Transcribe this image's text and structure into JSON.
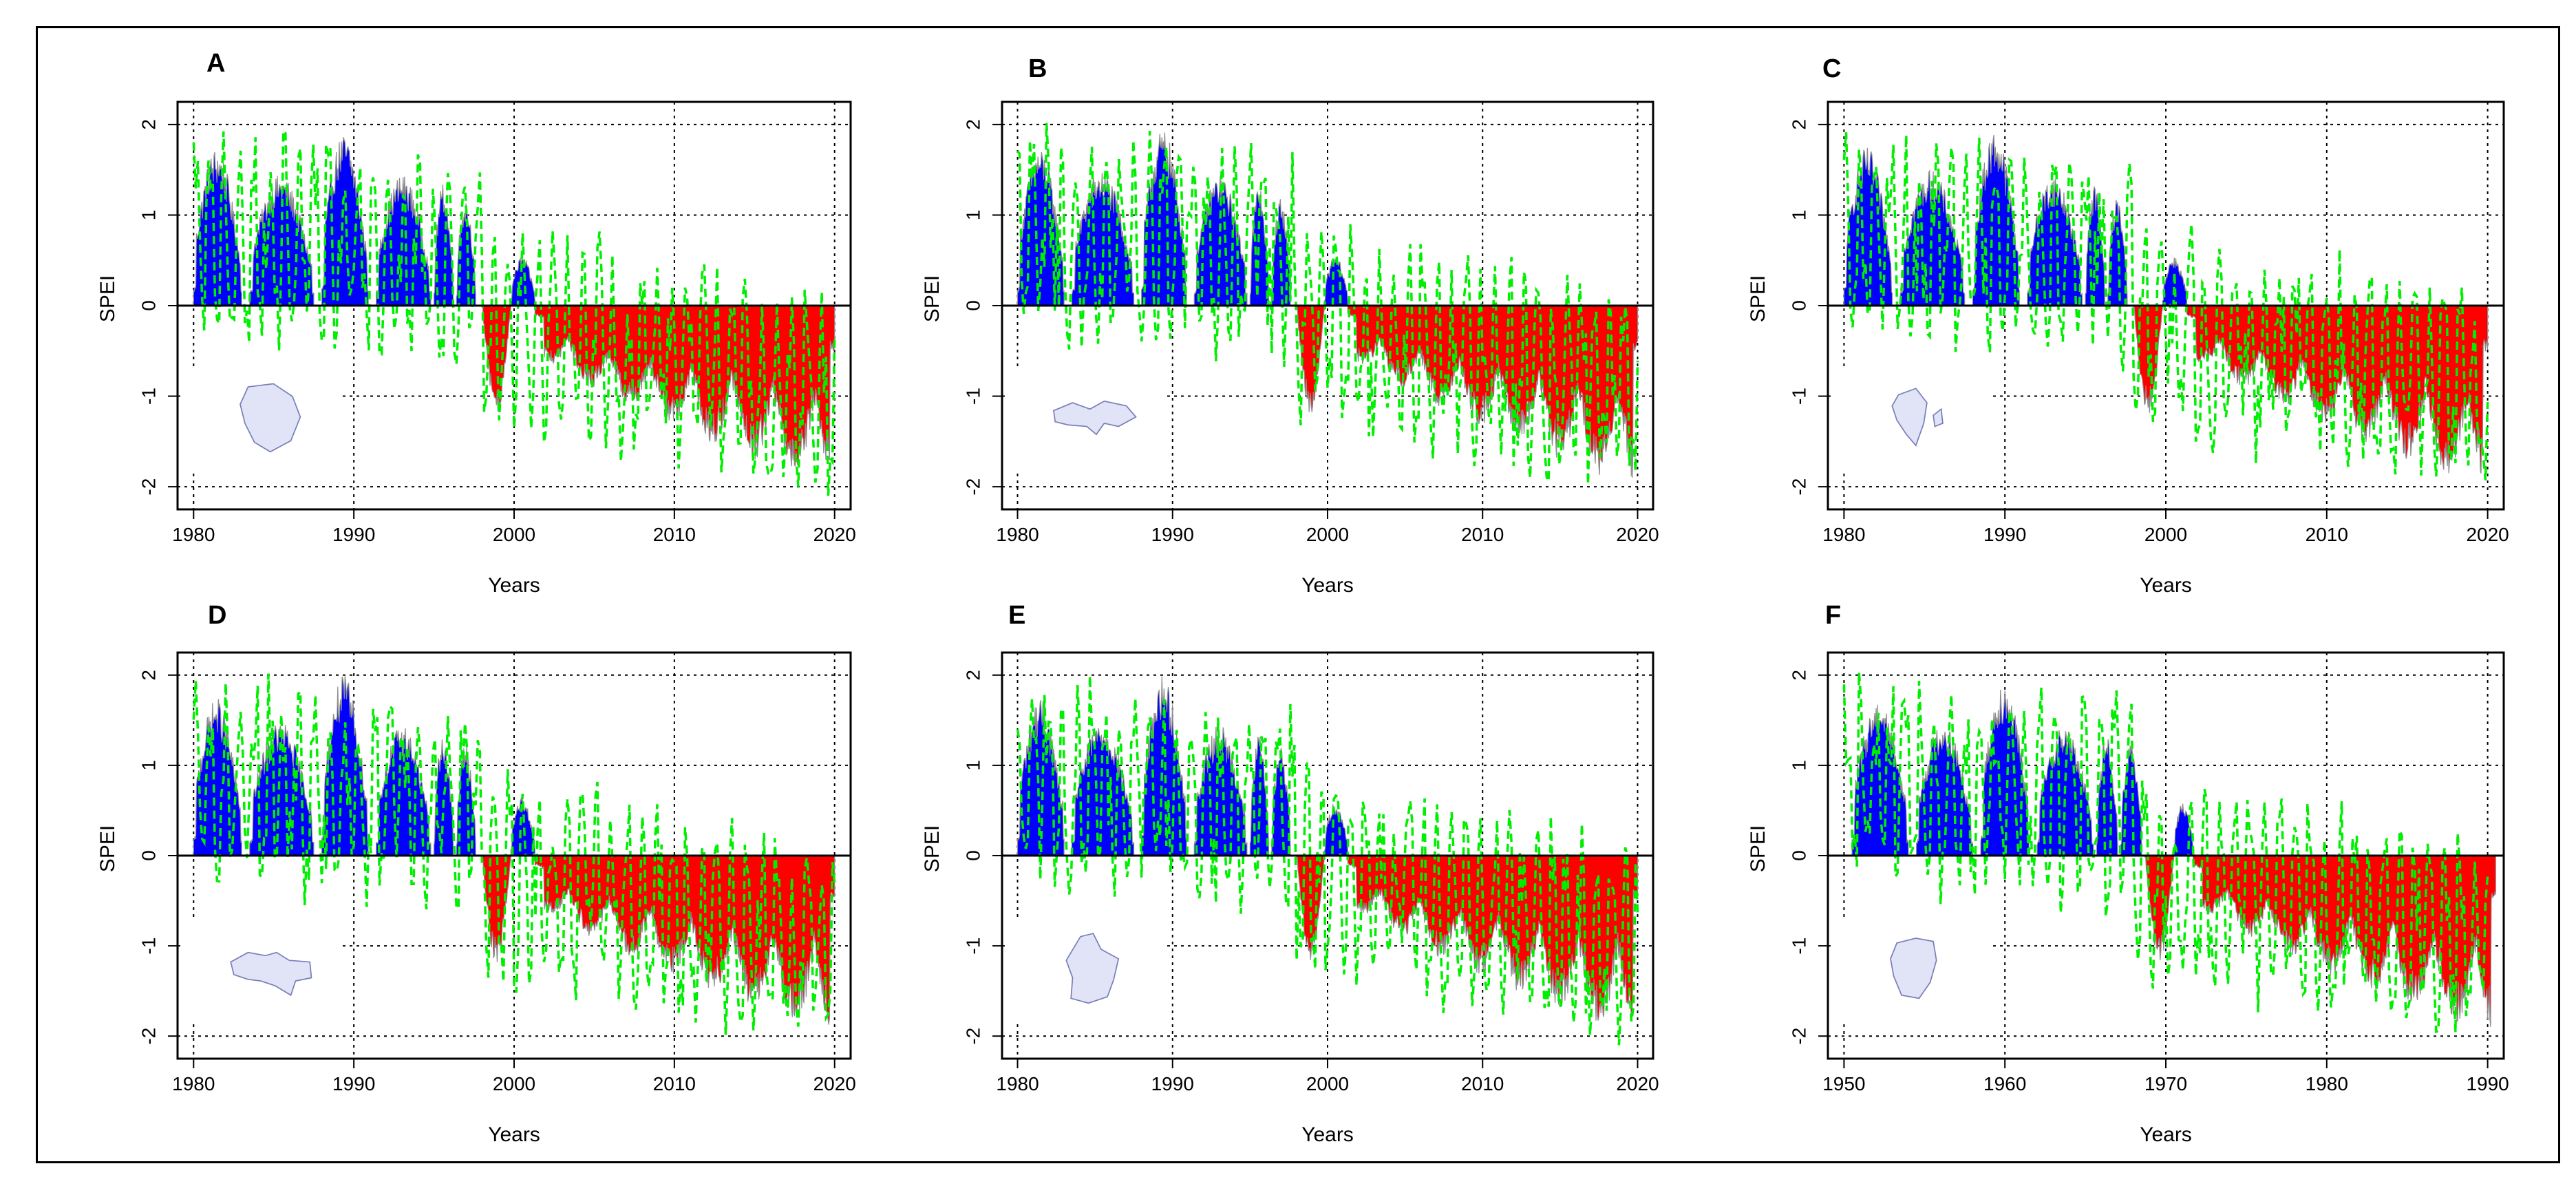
{
  "colors": {
    "positive": "#0000ff",
    "negative": "#ff0000",
    "modeled": "#00ee00",
    "observed_edge": "#8c8c8c",
    "grid": "#000000",
    "map_fill": "#e1e4f7",
    "map_stroke": "#7a7fb8"
  },
  "chart_data": [
    {
      "type": "area",
      "label": "A",
      "xlabel": "Years",
      "ylabel": "SPEI",
      "xlim": [
        1979,
        2021
      ],
      "ylim": [
        -2.25,
        2.25
      ],
      "xticks": [
        1980,
        1990,
        2000,
        2010,
        2020
      ],
      "yticks": [
        -2,
        -1,
        0,
        1,
        2
      ],
      "grid": true,
      "region_map": "region-map-a",
      "observed_segments": [
        {
          "x0": 1980,
          "x1": 1983.0,
          "peak": 1.75
        },
        {
          "x0": 1983.5,
          "x1": 1987.5,
          "peak": 1.45
        },
        {
          "x0": 1988.0,
          "x1": 1990.9,
          "peak": 1.9
        },
        {
          "x0": 1991.4,
          "x1": 1994.8,
          "peak": 1.45
        },
        {
          "x0": 1995.0,
          "x1": 1996.2,
          "peak": 1.35
        },
        {
          "x0": 1996.4,
          "x1": 1997.6,
          "peak": 1.2
        },
        {
          "x0": 1998.0,
          "x1": 1999.8,
          "peak": -1.2
        },
        {
          "x0": 1999.8,
          "x1": 2001.3,
          "peak": 0.55
        },
        {
          "x0": 2001.3,
          "x1": 2020.0,
          "peak": -2.05
        }
      ],
      "modeled_series": "green dashed line fluctuating between -2.1 and 2.0"
    },
    {
      "type": "area",
      "label": "B",
      "xlabel": "Years",
      "ylabel": "SPEI",
      "xlim": [
        1979,
        2021
      ],
      "ylim": [
        -2.25,
        2.25
      ],
      "xticks": [
        1980,
        1990,
        2000,
        2010,
        2020
      ],
      "yticks": [
        -2,
        -1,
        0,
        1,
        2
      ],
      "grid": true,
      "region_map": "region-map-b",
      "observed_segments": [
        {
          "x0": 1980,
          "x1": 1983.0,
          "peak": 1.75
        },
        {
          "x0": 1983.5,
          "x1": 1987.5,
          "peak": 1.5
        },
        {
          "x0": 1988.0,
          "x1": 1990.9,
          "peak": 1.95
        },
        {
          "x0": 1991.4,
          "x1": 1994.8,
          "peak": 1.45
        },
        {
          "x0": 1995.0,
          "x1": 1996.2,
          "peak": 1.35
        },
        {
          "x0": 1996.4,
          "x1": 1997.6,
          "peak": 1.2
        },
        {
          "x0": 1998.0,
          "x1": 1999.8,
          "peak": -1.2
        },
        {
          "x0": 1999.8,
          "x1": 2001.3,
          "peak": 0.55
        },
        {
          "x0": 2001.3,
          "x1": 2020.0,
          "peak": -2.05
        }
      ],
      "modeled_series": "green dashed line fluctuating between -2.1 and 2.0"
    },
    {
      "type": "area",
      "label": "C",
      "xlabel": "Years",
      "ylabel": "SPEI",
      "xlim": [
        1979,
        2021
      ],
      "ylim": [
        -2.25,
        2.25
      ],
      "xticks": [
        1980,
        1990,
        2000,
        2010,
        2020
      ],
      "yticks": [
        -2,
        -1,
        0,
        1,
        2
      ],
      "grid": true,
      "region_map": "region-map-c",
      "observed_segments": [
        {
          "x0": 1980,
          "x1": 1983.0,
          "peak": 1.75
        },
        {
          "x0": 1983.5,
          "x1": 1987.5,
          "peak": 1.5
        },
        {
          "x0": 1988.0,
          "x1": 1990.9,
          "peak": 1.95
        },
        {
          "x0": 1991.4,
          "x1": 1994.8,
          "peak": 1.45
        },
        {
          "x0": 1995.0,
          "x1": 1996.2,
          "peak": 1.35
        },
        {
          "x0": 1996.4,
          "x1": 1997.6,
          "peak": 1.2
        },
        {
          "x0": 1998.0,
          "x1": 1999.8,
          "peak": -1.2
        },
        {
          "x0": 1999.8,
          "x1": 2001.3,
          "peak": 0.55
        },
        {
          "x0": 2001.3,
          "x1": 2020.0,
          "peak": -2.05
        }
      ],
      "modeled_series": "green dashed line fluctuating between -2.1 and 2.0"
    },
    {
      "type": "area",
      "label": "D",
      "xlabel": "Years",
      "ylabel": "SPEI",
      "xlim": [
        1979,
        2021
      ],
      "ylim": [
        -2.25,
        2.25
      ],
      "xticks": [
        1980,
        1990,
        2000,
        2010,
        2020
      ],
      "yticks": [
        -2,
        -1,
        0,
        1,
        2
      ],
      "grid": true,
      "region_map": "region-map-d",
      "observed_segments": [
        {
          "x0": 1980,
          "x1": 1983.0,
          "peak": 1.75
        },
        {
          "x0": 1983.5,
          "x1": 1987.5,
          "peak": 1.5
        },
        {
          "x0": 1988.0,
          "x1": 1990.9,
          "peak": 2.0
        },
        {
          "x0": 1991.4,
          "x1": 1994.8,
          "peak": 1.45
        },
        {
          "x0": 1995.0,
          "x1": 1996.2,
          "peak": 1.35
        },
        {
          "x0": 1996.4,
          "x1": 1997.6,
          "peak": 1.25
        },
        {
          "x0": 1998.0,
          "x1": 1999.8,
          "peak": -1.2
        },
        {
          "x0": 1999.8,
          "x1": 2001.3,
          "peak": 0.65
        },
        {
          "x0": 2001.3,
          "x1": 2020.0,
          "peak": -2.05
        }
      ],
      "modeled_series": "green dashed line fluctuating between -2.1 and 2.0"
    },
    {
      "type": "area",
      "label": "E",
      "xlabel": "Years",
      "ylabel": "SPEI",
      "xlim": [
        1979,
        2021
      ],
      "ylim": [
        -2.25,
        2.25
      ],
      "xticks": [
        1980,
        1990,
        2000,
        2010,
        2020
      ],
      "yticks": [
        -2,
        -1,
        0,
        1,
        2
      ],
      "grid": true,
      "region_map": "region-map-e",
      "observed_segments": [
        {
          "x0": 1980,
          "x1": 1983.0,
          "peak": 1.75
        },
        {
          "x0": 1983.5,
          "x1": 1987.5,
          "peak": 1.5
        },
        {
          "x0": 1988.0,
          "x1": 1990.9,
          "peak": 2.0
        },
        {
          "x0": 1991.4,
          "x1": 1994.8,
          "peak": 1.45
        },
        {
          "x0": 1995.0,
          "x1": 1996.2,
          "peak": 1.35
        },
        {
          "x0": 1996.4,
          "x1": 1997.6,
          "peak": 1.25
        },
        {
          "x0": 1998.0,
          "x1": 1999.8,
          "peak": -1.2
        },
        {
          "x0": 1999.8,
          "x1": 2001.3,
          "peak": 0.6
        },
        {
          "x0": 2001.3,
          "x1": 2020.0,
          "peak": -2.05
        }
      ],
      "modeled_series": "green dashed line fluctuating between -2.1 and 2.0"
    },
    {
      "type": "area",
      "label": "F",
      "xlabel": "Years",
      "ylabel": "SPEI",
      "xlim": [
        1949,
        1991
      ],
      "ylim": [
        -2.25,
        2.25
      ],
      "xticks": [
        1950,
        1960,
        1970,
        1980,
        1990
      ],
      "yticks": [
        -2,
        -1,
        0,
        1,
        2
      ],
      "grid": true,
      "region_map": "region-map-f",
      "observed_segments": [
        {
          "x0": 1950.5,
          "x1": 1954.0,
          "peak": 1.75
        },
        {
          "x0": 1954.5,
          "x1": 1958.0,
          "peak": 1.5
        },
        {
          "x0": 1958.5,
          "x1": 1961.5,
          "peak": 1.95
        },
        {
          "x0": 1962.0,
          "x1": 1965.5,
          "peak": 1.45
        },
        {
          "x0": 1965.7,
          "x1": 1967.0,
          "peak": 1.35
        },
        {
          "x0": 1967.2,
          "x1": 1968.5,
          "peak": 1.25
        },
        {
          "x0": 1968.7,
          "x1": 1970.5,
          "peak": -1.2
        },
        {
          "x0": 1970.5,
          "x1": 1971.7,
          "peak": 0.6
        },
        {
          "x0": 1971.7,
          "x1": 1990.5,
          "peak": -2.05
        }
      ],
      "modeled_series": "green dashed line fluctuating between -2.1 and 2.0"
    }
  ]
}
